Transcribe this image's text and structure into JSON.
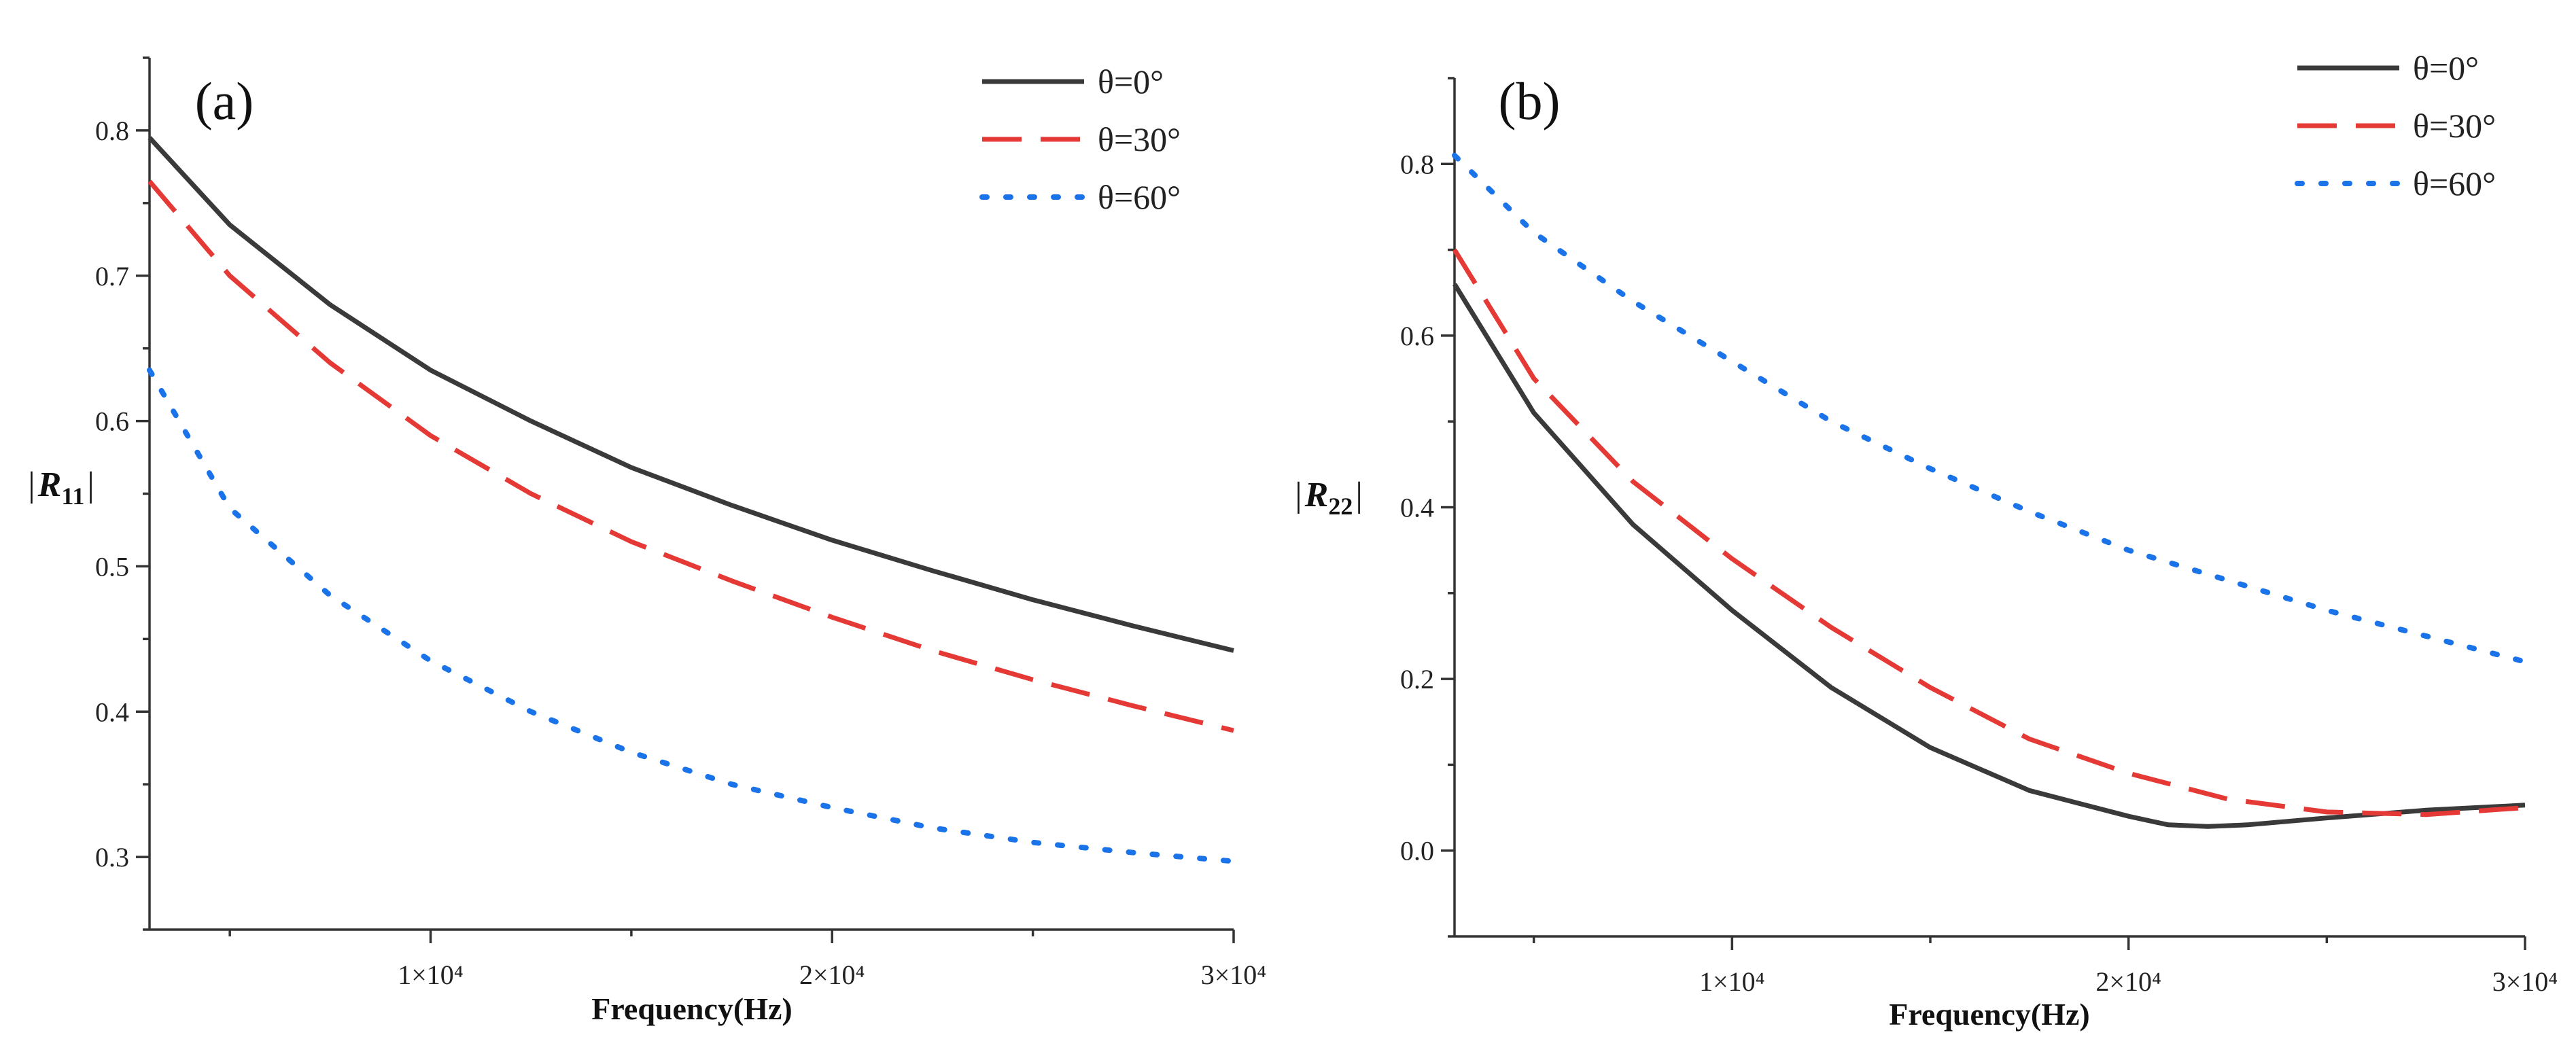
{
  "colors": {
    "theta0": "#3a3a3a",
    "theta30": "#e53935",
    "theta60": "#1a73e8",
    "axis": "#333333"
  },
  "chart_data": [
    {
      "type": "line",
      "panel_label": "(a)",
      "xlabel": "Frequency(Hz)",
      "ylabel": {
        "bar_left": "|",
        "main": "R",
        "sub": "11",
        "bar_right": "|"
      },
      "xlim": [
        3000,
        30000
      ],
      "ylim": [
        0.25,
        0.85
      ],
      "x_ticks": [
        10000,
        20000,
        30000
      ],
      "x_tick_labels": [
        "1×10⁴",
        "2×10⁴",
        "3×10⁴"
      ],
      "x_minor_ticks": [
        5000,
        15000,
        25000
      ],
      "y_ticks": [
        0.3,
        0.4,
        0.5,
        0.6,
        0.7,
        0.8
      ],
      "y_tick_labels": [
        "0.3",
        "0.4",
        "0.5",
        "0.6",
        "0.7",
        "0.8"
      ],
      "y_minor_ticks": [
        0.25,
        0.35,
        0.45,
        0.55,
        0.65,
        0.75,
        0.85
      ],
      "legend_position": "top-right",
      "series": [
        {
          "name": "θ=0°",
          "style": "solid",
          "color_key": "theta0",
          "x": [
            3000,
            5000,
            7500,
            10000,
            12500,
            15000,
            17500,
            20000,
            22500,
            25000,
            27500,
            30000
          ],
          "y": [
            0.795,
            0.735,
            0.68,
            0.635,
            0.6,
            0.568,
            0.542,
            0.518,
            0.497,
            0.477,
            0.459,
            0.442
          ]
        },
        {
          "name": "θ=30°",
          "style": "dashed",
          "color_key": "theta30",
          "x": [
            3000,
            5000,
            7500,
            10000,
            12500,
            15000,
            17500,
            20000,
            22500,
            25000,
            27500,
            30000
          ],
          "y": [
            0.765,
            0.7,
            0.64,
            0.59,
            0.55,
            0.517,
            0.49,
            0.465,
            0.442,
            0.422,
            0.404,
            0.387
          ]
        },
        {
          "name": "θ=60°",
          "style": "dotted",
          "color_key": "theta60",
          "x": [
            3000,
            5000,
            7500,
            10000,
            12500,
            15000,
            17500,
            20000,
            22500,
            25000,
            27500,
            30000
          ],
          "y": [
            0.635,
            0.54,
            0.48,
            0.435,
            0.4,
            0.372,
            0.35,
            0.334,
            0.32,
            0.31,
            0.303,
            0.297
          ]
        }
      ]
    },
    {
      "type": "line",
      "panel_label": "(b)",
      "xlabel": "Frequency(Hz)",
      "ylabel": {
        "bar_left": "|",
        "main": "R",
        "sub": "22",
        "bar_right": "|"
      },
      "xlim": [
        3000,
        30000
      ],
      "ylim": [
        -0.1,
        0.9
      ],
      "x_ticks": [
        10000,
        20000,
        30000
      ],
      "x_tick_labels": [
        "1×10⁴",
        "2×10⁴",
        "3×10⁴"
      ],
      "x_minor_ticks": [
        5000,
        15000,
        25000
      ],
      "y_ticks": [
        0.0,
        0.2,
        0.4,
        0.6,
        0.8
      ],
      "y_tick_labels": [
        "0.0",
        "0.2",
        "0.4",
        "0.6",
        "0.8"
      ],
      "y_minor_ticks": [
        -0.1,
        0.1,
        0.3,
        0.5,
        0.7,
        0.9
      ],
      "legend_position": "top-right",
      "series": [
        {
          "name": "θ=0°",
          "style": "solid",
          "color_key": "theta0",
          "x": [
            3000,
            5000,
            7500,
            10000,
            12500,
            15000,
            17500,
            20000,
            21000,
            22000,
            23000,
            25000,
            27500,
            30000
          ],
          "y": [
            0.66,
            0.51,
            0.38,
            0.28,
            0.19,
            0.12,
            0.07,
            0.04,
            0.03,
            0.028,
            0.03,
            0.038,
            0.047,
            0.053
          ]
        },
        {
          "name": "θ=30°",
          "style": "dashed",
          "color_key": "theta30",
          "x": [
            3000,
            5000,
            7500,
            10000,
            12500,
            15000,
            17500,
            20000,
            22500,
            25000,
            27500,
            30000
          ],
          "y": [
            0.7,
            0.55,
            0.43,
            0.34,
            0.26,
            0.19,
            0.13,
            0.09,
            0.06,
            0.045,
            0.042,
            0.05
          ]
        },
        {
          "name": "θ=60°",
          "style": "dotted",
          "color_key": "theta60",
          "x": [
            3000,
            5000,
            7500,
            10000,
            12500,
            15000,
            17500,
            20000,
            22500,
            25000,
            27500,
            30000
          ],
          "y": [
            0.81,
            0.72,
            0.64,
            0.57,
            0.5,
            0.445,
            0.395,
            0.35,
            0.315,
            0.28,
            0.25,
            0.22
          ]
        }
      ]
    }
  ]
}
